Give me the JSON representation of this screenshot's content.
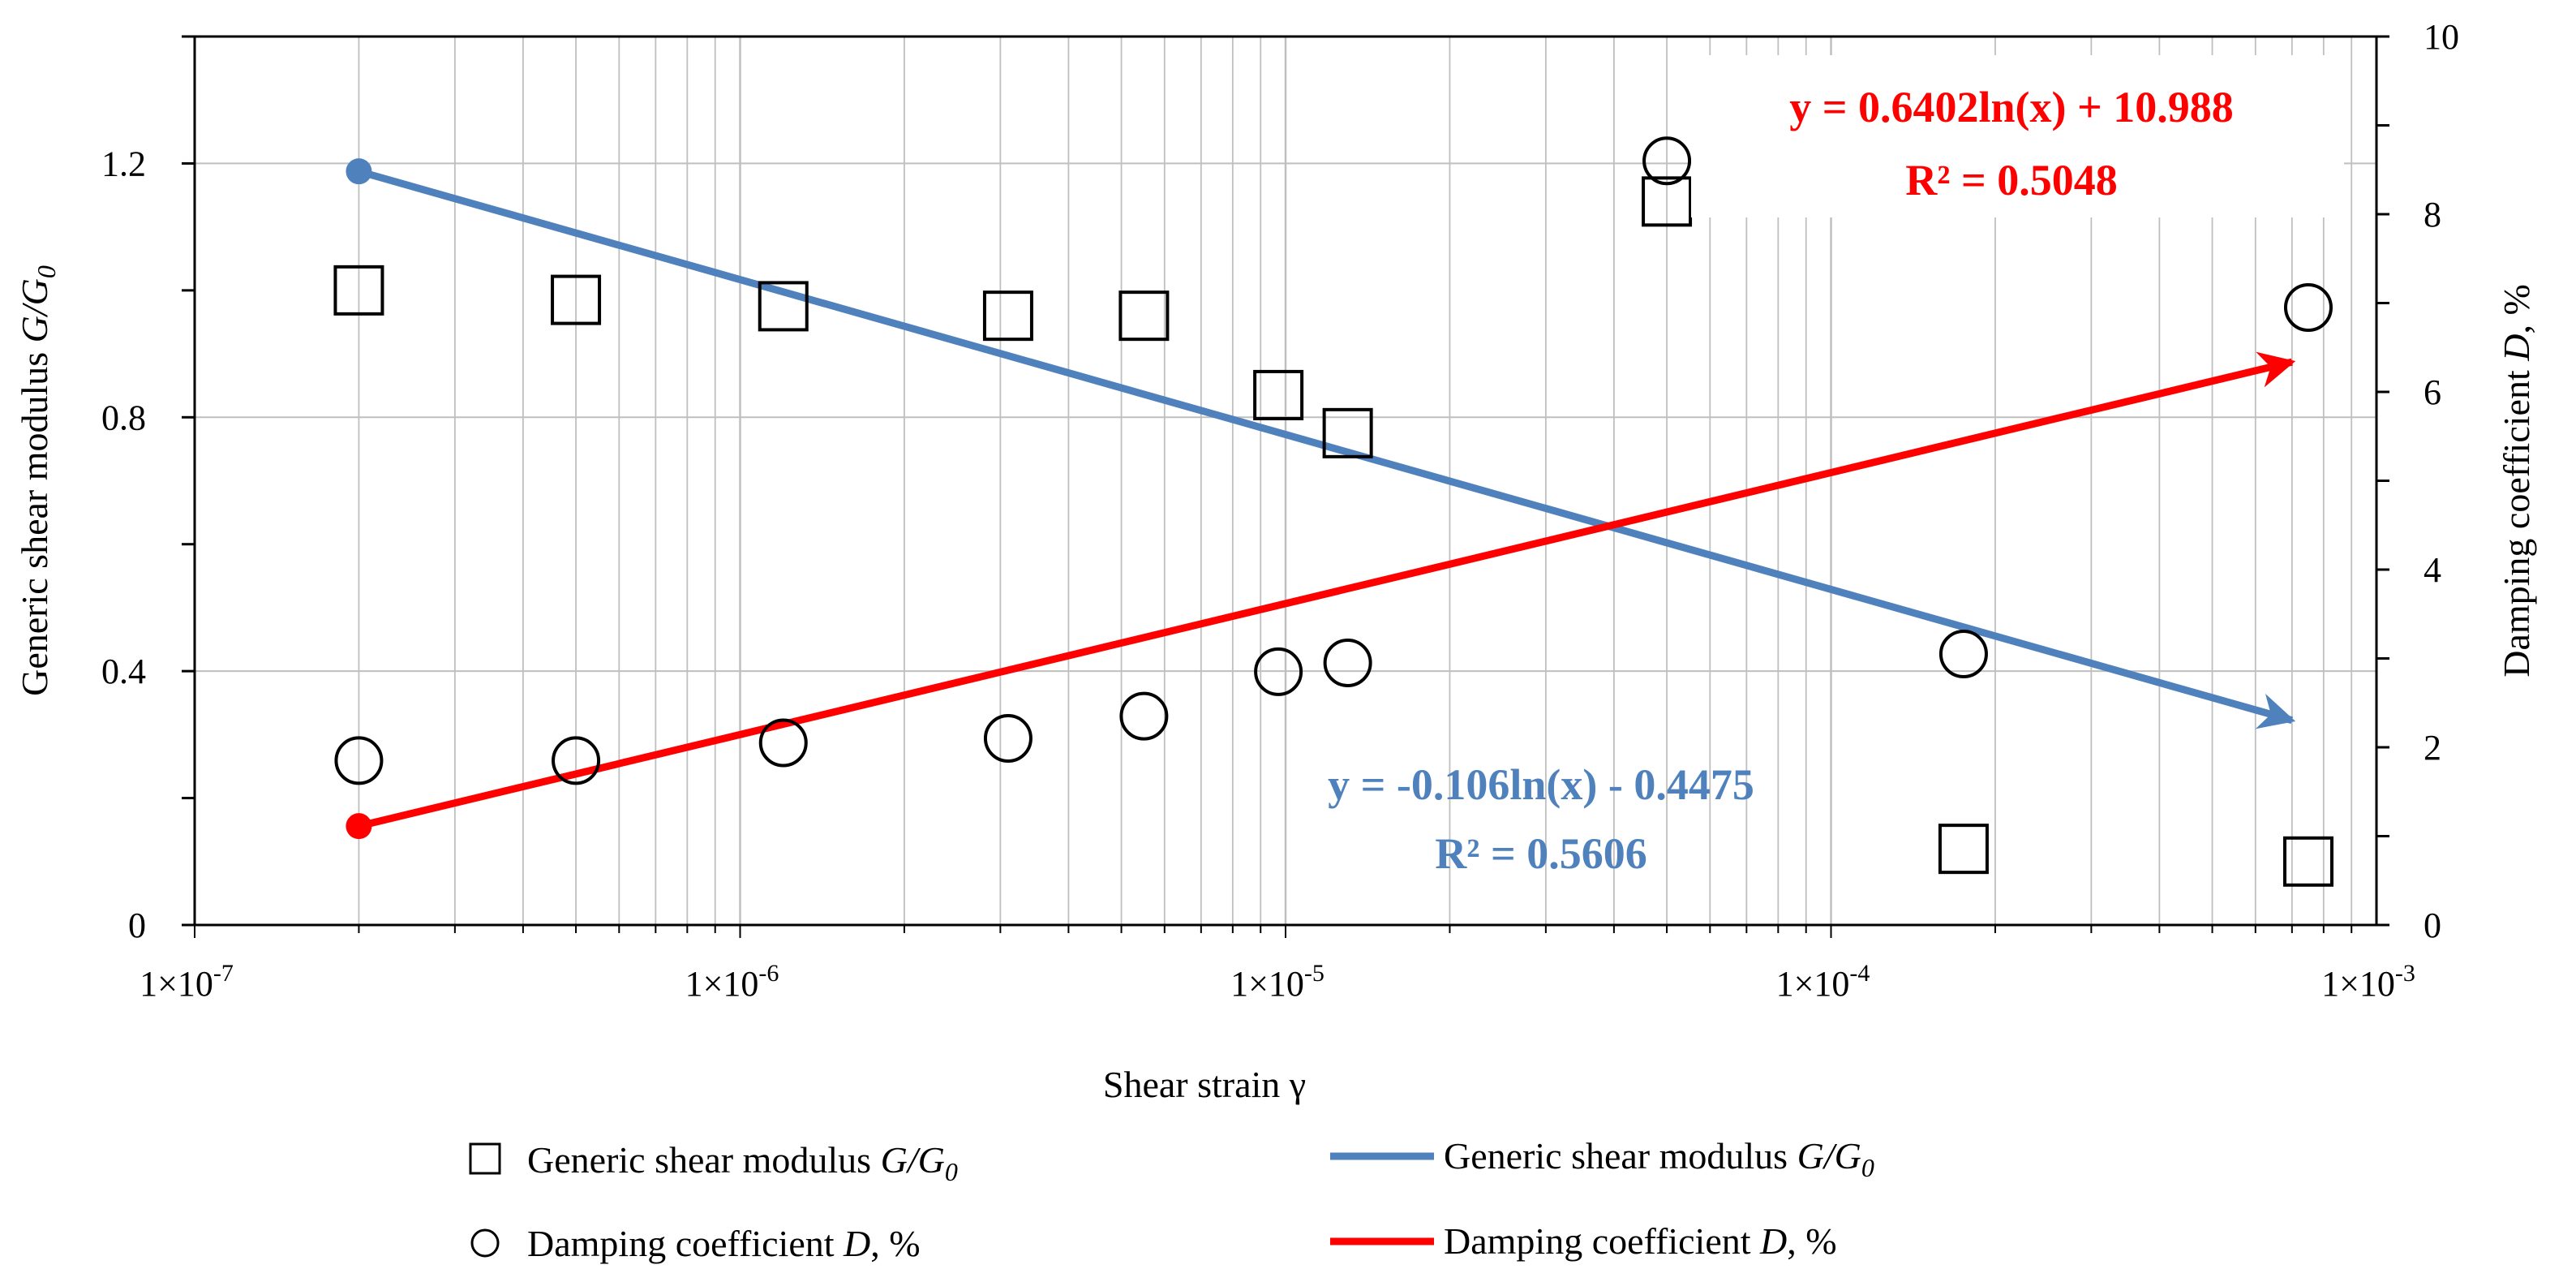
{
  "chart_data": {
    "type": "scatter",
    "x_scale": "log",
    "xlim": [
      1e-07,
      0.001
    ],
    "xlabel": "Shear strain γ",
    "x_ticks": [
      {
        "value": 1e-07,
        "label": "1×10-7",
        "base": "1×10",
        "exp": "-7"
      },
      {
        "value": 1e-06,
        "label": "1×10-6",
        "base": "1×10",
        "exp": "-6"
      },
      {
        "value": 1e-05,
        "label": "1×10-5",
        "base": "1×10",
        "exp": "-5"
      },
      {
        "value": 0.0001,
        "label": "1×10-4",
        "base": "1×10",
        "exp": "-4"
      },
      {
        "value": 0.001,
        "label": "1×10-3",
        "base": "1×10",
        "exp": "-3"
      }
    ],
    "y_left": {
      "label": "Generic shear modulus G/G0",
      "label_prefix": "Generic shear modulus ",
      "label_var": "G/G",
      "label_sub": "0",
      "ylim": [
        0,
        1.4
      ],
      "ticks": [
        0,
        0.4,
        0.8,
        1.2
      ],
      "tick_labels": [
        "0",
        "0.4",
        "0.8",
        "1.2"
      ]
    },
    "y_right": {
      "label": "Damping coefficient D, %",
      "label_prefix": "Damping coefficient ",
      "label_var": "D",
      "label_suffix": ", %",
      "ylim": [
        0,
        10
      ],
      "ticks": [
        0,
        2,
        4,
        6,
        8,
        10
      ],
      "tick_labels": [
        "0",
        "2",
        "4",
        "6",
        "8",
        "10"
      ]
    },
    "grid": true,
    "series": [
      {
        "kind": "scatter",
        "marker": "square",
        "axis": "left",
        "x": [
          2e-07,
          5e-07,
          1.2e-06,
          3.1e-06,
          5.5e-06,
          9.7e-06,
          1.3e-05,
          5e-05,
          0.000175,
          0.00075
        ],
        "y": [
          1.0,
          0.985,
          0.975,
          0.96,
          0.96,
          0.835,
          0.775,
          1.14,
          0.12,
          0.1
        ]
      },
      {
        "kind": "scatter",
        "marker": "circle",
        "axis": "right",
        "x": [
          2e-07,
          5e-07,
          1.2e-06,
          3.1e-06,
          5.5e-06,
          9.7e-06,
          1.3e-05,
          5e-05,
          0.000175,
          0.00075
        ],
        "y": [
          1.85,
          1.85,
          2.05,
          2.1,
          2.35,
          2.85,
          2.95,
          8.6,
          3.05,
          6.95
        ]
      },
      {
        "kind": "trendline",
        "axis": "left",
        "color": "#4f81bd",
        "equation": "y = -0.106ln(x) - 0.4475",
        "r2": "R² = 0.5606",
        "coef_a": -0.106,
        "coef_b": -0.4475,
        "x_range": [
          2e-07,
          0.0007
        ]
      },
      {
        "kind": "trendline",
        "axis": "right",
        "color": "#ff0000",
        "equation": "y = 0.6402ln(x) + 10.988",
        "r2": "R² = 0.5048",
        "coef_a": 0.6402,
        "coef_b": 10.988,
        "x_range": [
          2e-07,
          0.0007
        ]
      }
    ],
    "legend": {
      "placement": "bottom",
      "entries": [
        {
          "symbol": "square",
          "prefix": "Generic shear modulus ",
          "var": "G/G",
          "sub": "0",
          "suffix": ""
        },
        {
          "symbol": "blue-line",
          "prefix": "Generic shear modulus ",
          "var": "G/G",
          "sub": "0",
          "suffix": ""
        },
        {
          "symbol": "circle",
          "prefix": "Damping coefficient ",
          "var": "D",
          "sub": "",
          "suffix": ", %"
        },
        {
          "symbol": "red-line",
          "prefix": "Damping coefficient ",
          "var": "D",
          "sub": "",
          "suffix": ", %"
        }
      ]
    },
    "colors": {
      "blue_trend": "#4f81bd",
      "red_trend": "#ff0000",
      "markers": "#000000",
      "grid": "#bfbfbf"
    }
  }
}
